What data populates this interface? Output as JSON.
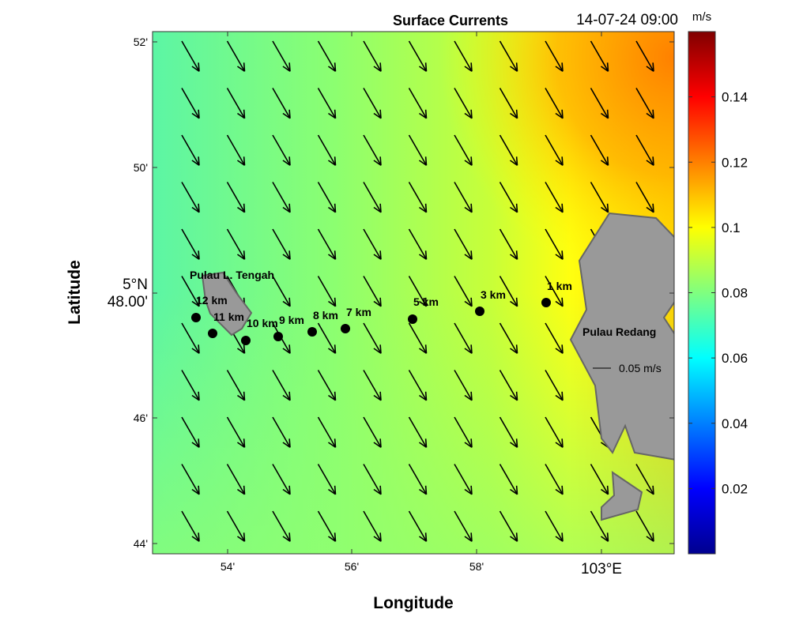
{
  "title": "Surface Currents",
  "timestamp": "14-07-24 09:00",
  "xlabel": "Longitude",
  "ylabel": "Latitude",
  "x_ticks": [
    "54'",
    "56'",
    "58'",
    "103°E"
  ],
  "y_ticks": [
    "52'",
    "50'",
    "5°N\n48.00'",
    "46'",
    "44'"
  ],
  "colorbar": {
    "unit": "m/s",
    "ticks": [
      "0.02",
      "0.04",
      "0.06",
      "0.08",
      "0.1",
      "0.12",
      "0.14"
    ],
    "range": [
      0,
      0.16
    ],
    "colormap": "jet"
  },
  "islands": [
    "Pulau L. Tengah",
    "Pulau Redang"
  ],
  "stations": [
    {
      "label": "12 km"
    },
    {
      "label": "11 km"
    },
    {
      "label": "10 km"
    },
    {
      "label": "9 km"
    },
    {
      "label": "8 km"
    },
    {
      "label": "7 km"
    },
    {
      "label": "5 km"
    },
    {
      "label": "3 km"
    },
    {
      "label": "1 km"
    }
  ],
  "reference_vector": "0.05 m/s",
  "vector_field": {
    "direction": "south-southeast",
    "u_rel": 0.5,
    "v_rel": -0.87
  }
}
